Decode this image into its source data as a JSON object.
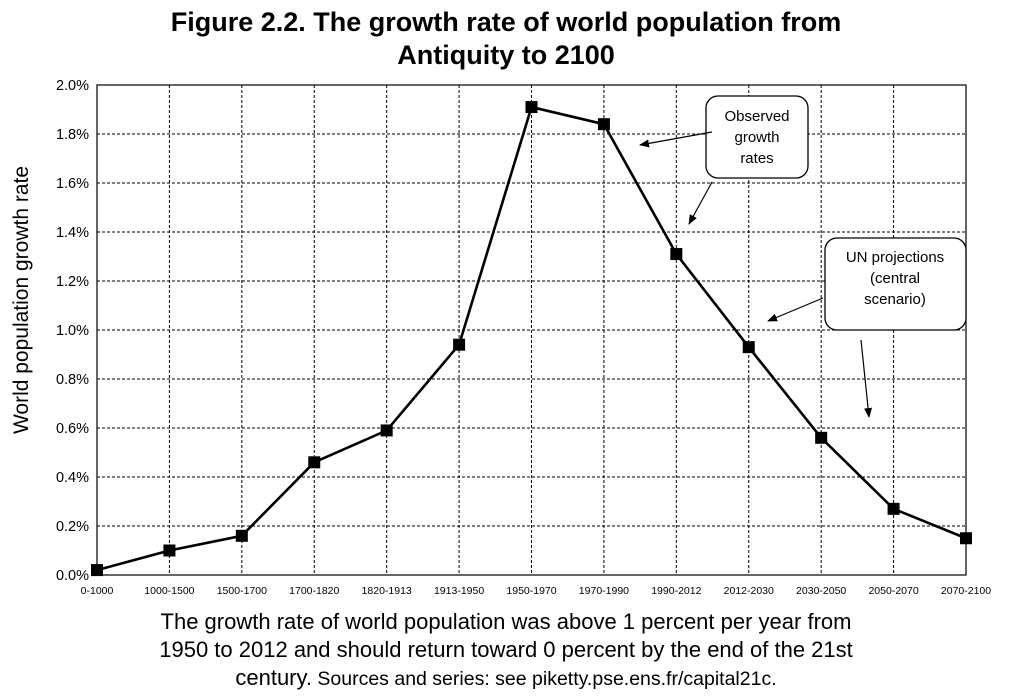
{
  "chart_data": {
    "type": "line",
    "title_lines": [
      "Figure 2.2. The growth rate of world population from",
      "Antiquity to 2100"
    ],
    "ylabel": "World population growth rate",
    "xlabel": "",
    "ylim": [
      0,
      2.0
    ],
    "y_ticks": [
      0.0,
      0.2,
      0.4,
      0.6,
      0.8,
      1.0,
      1.2,
      1.4,
      1.6,
      1.8,
      2.0
    ],
    "y_tick_labels": [
      "0.0%",
      "0.2%",
      "0.4%",
      "0.6%",
      "0.8%",
      "1.0%",
      "1.2%",
      "1.4%",
      "1.6%",
      "1.8%",
      "2.0%"
    ],
    "grid": true,
    "categories": [
      "0-1000",
      "1000-1500",
      "1500-1700",
      "1700-1820",
      "1820-1913",
      "1913-1950",
      "1950-1970",
      "1970-1990",
      "1990-2012",
      "2012-2030",
      "2030-2050",
      "2050-2070",
      "2070-2100"
    ],
    "series": [
      {
        "name": "World population growth rate",
        "unit": "%",
        "values": [
          0.02,
          0.1,
          0.16,
          0.46,
          0.59,
          0.94,
          1.91,
          1.84,
          1.31,
          0.93,
          0.56,
          0.27,
          0.15
        ],
        "marker": "square",
        "color": "#000000"
      }
    ],
    "annotations": [
      {
        "lines": [
          "Observed",
          "growth",
          "rates"
        ],
        "points_to": [
          "1970-1990",
          "1990-2012"
        ]
      },
      {
        "lines": [
          "UN projections",
          "(central",
          "scenario)"
        ],
        "points_to": [
          "2012-2030",
          "2030-2050"
        ]
      }
    ]
  },
  "caption": {
    "line1": "The growth rate of world population was above 1 percent per year from",
    "line2": "1950 to 2012 and should return toward 0 percent by the end of the 21st",
    "line3_main": "century.",
    "line3_source": " Sources and series: see piketty.pse.ens.fr/capital21c."
  }
}
